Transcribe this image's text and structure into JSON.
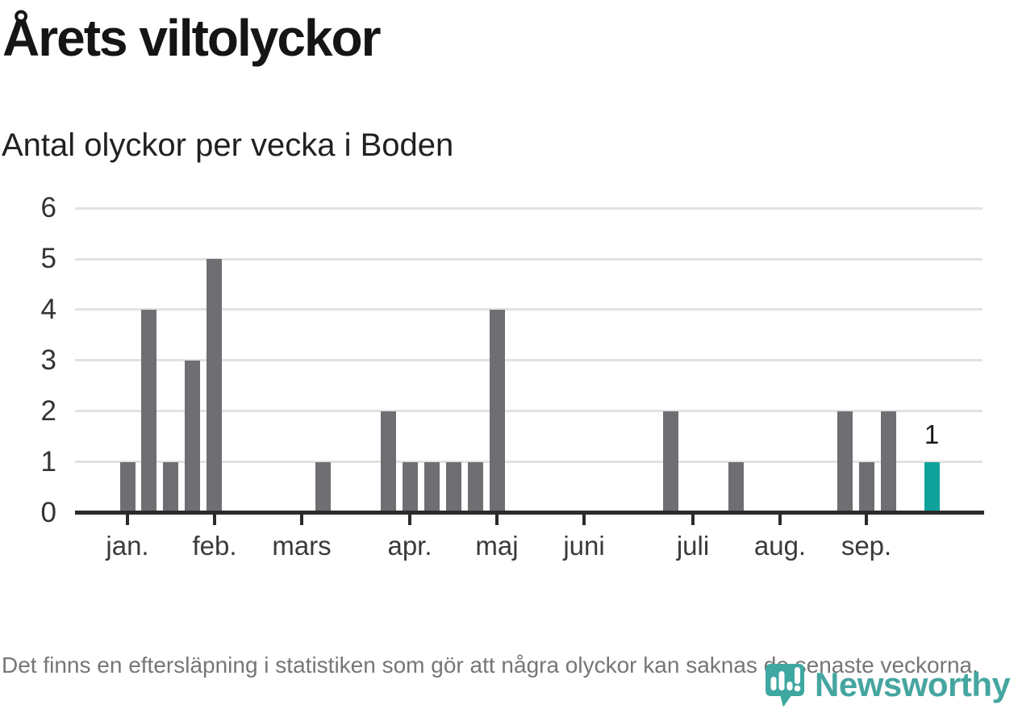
{
  "title": "Årets viltolyckor",
  "subtitle": "Antal olyckor per vecka i Boden",
  "footer": {
    "note": "Det finns en eftersläpning i statistiken som gör att några olyckor kan saknas de senaste veckorna."
  },
  "logo": {
    "brand": "Newsworthy",
    "mark": "newsworthy-pin-bar-chart-icon"
  },
  "colors": {
    "bar_gray": "#6f6e73",
    "bar_highlight": "#0fa29a",
    "axis": "#2b2b2b",
    "gridline": "#e2e2e2",
    "logo_teal": "#3ea8a1",
    "wordmark_teal": "#45a6a0",
    "footnote_gray": "#767676",
    "label_dark": "#1a1a1a"
  },
  "chart_data": {
    "type": "bar",
    "title": "Årets viltolyckor",
    "subtitle": "Antal olyckor per vecka i Boden",
    "x_unit": "vecka",
    "ylabel": "",
    "xlabel": "",
    "ylim": [
      0,
      6
    ],
    "grid": true,
    "y_ticks": [
      0,
      1,
      2,
      3,
      4,
      5,
      6
    ],
    "values": [
      1,
      4,
      1,
      3,
      5,
      0,
      0,
      0,
      0,
      1,
      0,
      0,
      2,
      1,
      1,
      1,
      1,
      4,
      0,
      0,
      0,
      0,
      0,
      0,
      0,
      2,
      0,
      0,
      1,
      0,
      0,
      0,
      0,
      2,
      1,
      2,
      0,
      1
    ],
    "highlight_index": 37,
    "highlight_label": "1",
    "month_ticks": [
      {
        "label": "jan.",
        "week": 0
      },
      {
        "label": "feb.",
        "week": 4
      },
      {
        "label": "mars",
        "week": 8
      },
      {
        "label": "apr.",
        "week": 13
      },
      {
        "label": "maj",
        "week": 17
      },
      {
        "label": "juni",
        "week": 21
      },
      {
        "label": "juli",
        "week": 26
      },
      {
        "label": "aug.",
        "week": 30
      },
      {
        "label": "sep.",
        "week": 34
      }
    ]
  }
}
